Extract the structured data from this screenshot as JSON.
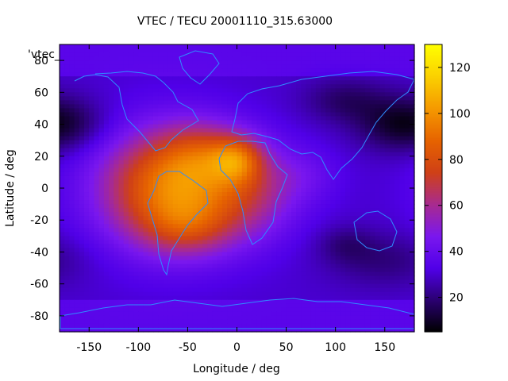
{
  "chart_data": {
    "type": "heatmap",
    "title": "VTEC / TECU 20001110_315.63000",
    "xlabel": "Longitude / deg",
    "ylabel": "Latitude / deg",
    "key_label": "'vtec_",
    "xlim": [
      -180,
      180
    ],
    "ylim": [
      -90,
      90
    ],
    "x_ticks": [
      -150,
      -100,
      -50,
      0,
      50,
      100,
      150
    ],
    "y_ticks": [
      -80,
      -60,
      -40,
      -20,
      0,
      20,
      40,
      60,
      80
    ],
    "colorbar": {
      "range": [
        5,
        130
      ],
      "ticks": [
        20,
        40,
        60,
        80,
        100,
        120
      ],
      "palette": [
        "#000000",
        "#2a0070",
        "#5000e8",
        "#7a17ee",
        "#a82b8f",
        "#cf4017",
        "#e66300",
        "#f59900",
        "#fbd000",
        "#ffff00"
      ]
    },
    "grid_resolution": {
      "dlon": 5,
      "dlat": 2.5
    },
    "field_model": {
      "background_tecu": 30,
      "components": [
        {
          "lon": -70,
          "lat": 0,
          "sigma_lon": 50,
          "sigma_lat": 26,
          "amp": 55
        },
        {
          "lon": -20,
          "lat": -5,
          "sigma_lon": 50,
          "sigma_lat": 22,
          "amp": 18
        },
        {
          "lon": -35,
          "lat": 22,
          "sigma_lon": 30,
          "sigma_lat": 14,
          "amp": 20
        },
        {
          "lon": 0,
          "lat": 18,
          "sigma_lon": 18,
          "sigma_lat": 10,
          "amp": 32
        },
        {
          "lon": -50,
          "lat": -25,
          "sigma_lon": 30,
          "sigma_lat": 12,
          "amp": 16
        },
        {
          "lon": 20,
          "lat": 0,
          "sigma_lon": 30,
          "sigma_lat": 20,
          "amp": 14
        },
        {
          "lon": 70,
          "lat": 8,
          "sigma_lon": 25,
          "sigma_lat": 12,
          "amp": 8
        },
        {
          "lon": 160,
          "lat": 40,
          "sigma_lon": 30,
          "sigma_lat": 12,
          "amp": -14
        },
        {
          "lon": 110,
          "lat": 55,
          "sigma_lon": 30,
          "sigma_lat": 10,
          "amp": -12
        },
        {
          "lon": 150,
          "lat": -45,
          "sigma_lon": 40,
          "sigma_lat": 12,
          "amp": -10
        },
        {
          "lon": -170,
          "lat": 40,
          "sigma_lon": 30,
          "sigma_lat": 12,
          "amp": -12
        },
        {
          "lon": 110,
          "lat": -35,
          "sigma_lon": 20,
          "sigma_lat": 8,
          "amp": -8
        }
      ],
      "polar_boost": {
        "lat_min": 70,
        "amp": 6
      }
    }
  }
}
